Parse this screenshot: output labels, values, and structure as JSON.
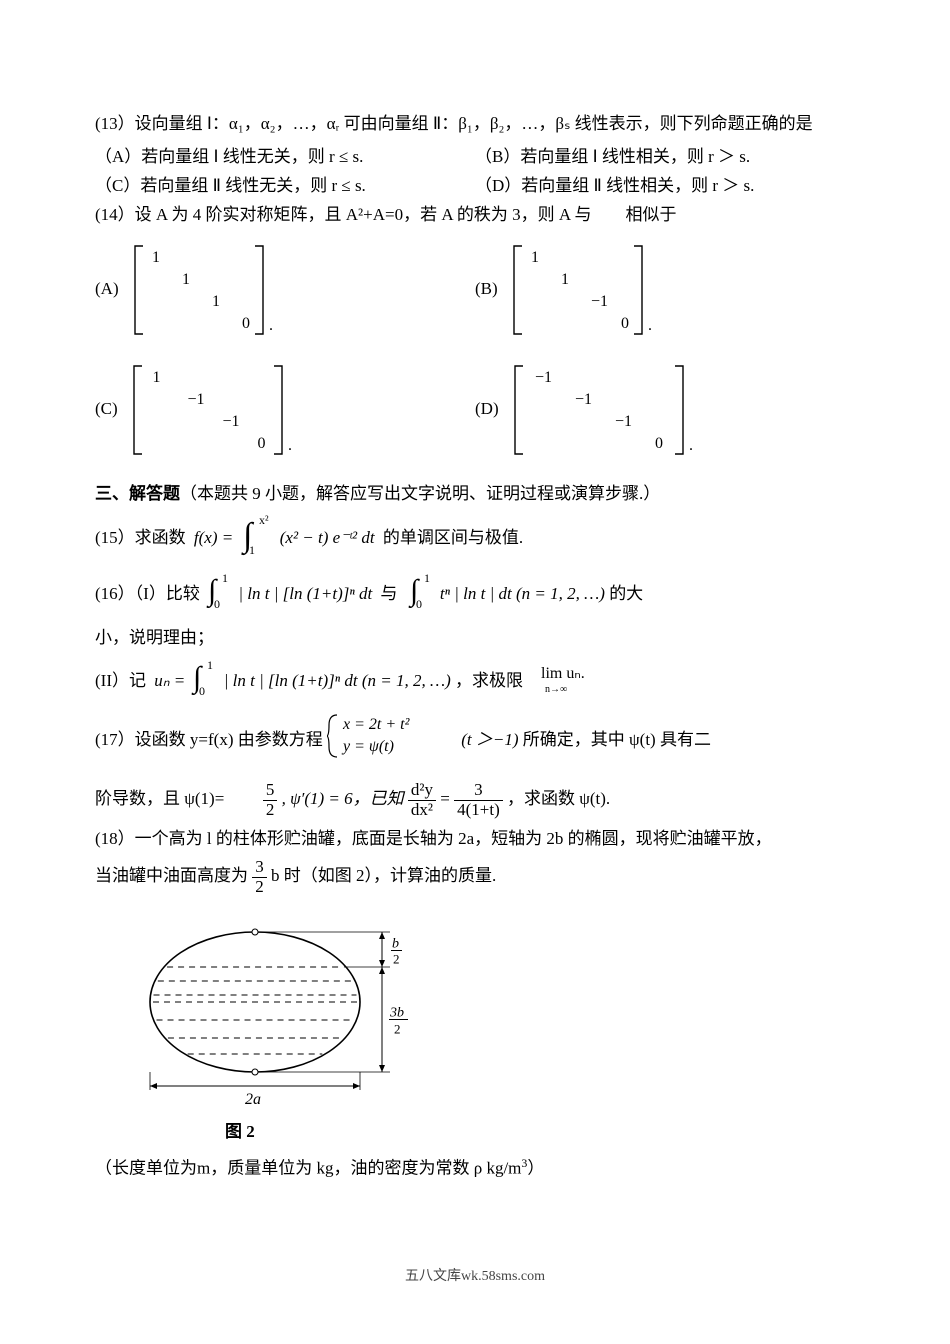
{
  "q13": {
    "stem": "(13）设向量组 Ⅰ：α₁，α₂，…，αᵣ 可由向量组 Ⅱ：β₁，β₂，…，βₛ 线性表示，则下列命题正确的是",
    "optA": "（A）若向量组 Ⅰ 线性无关，则 r ≤ s.",
    "optB": "（B）若向量组 Ⅰ 线性相关，则 r ＞ s.",
    "optC": "（C）若向量组 Ⅱ 线性无关，则 r ≤ s.",
    "optD": "（D）若向量组 Ⅱ 线性相关，则 r ＞ s."
  },
  "q14": {
    "stem": "(14）设 A 为 4 阶实对称矩阵，且 A²+A=0，若 A 的秩为 3，则 A 与　　相似于",
    "labelA": "(A)",
    "labelB": "(B)",
    "labelC": "(C)",
    "labelD": "(D)",
    "matrixA": {
      "d": [
        "1",
        "1",
        "1",
        "0"
      ]
    },
    "matrixB": {
      "d": [
        "1",
        "1",
        "−1",
        "0"
      ]
    },
    "matrixC": {
      "d": [
        "1",
        "−1",
        "−1",
        "0"
      ]
    },
    "matrixD": {
      "d": [
        "−1",
        "−1",
        "−1",
        "0"
      ]
    }
  },
  "section3": {
    "title": "三、解答题",
    "note": "（本题共 9 小题，解答应写出文字说明、证明过程或演算步骤.）"
  },
  "q15": {
    "prefix": "(15）求函数",
    "detail": "的单调区间与极值.",
    "int_lower": "1",
    "int_upper": "x²",
    "integrand": "(x² − t) e⁻ᵗ² dt",
    "f_label": "f(x) ="
  },
  "q16": {
    "part1_a": "(16）（I）比较",
    "expr1_low": "0",
    "expr1_up": "1",
    "expr1_txt": "| ln t | [ln (1+t)]ⁿ dt",
    "mid": "与",
    "expr2_low": "0",
    "expr2_up": "1",
    "expr2_txt": "tⁿ | ln t | dt (n = 1, 2, …)",
    "part1_b": "的大",
    "part1_c": "小，说明理由；",
    "part2_a": "(II）记",
    "u_eq": "uₙ =",
    "part2_int_low": "0",
    "part2_int_up": "1",
    "part2_int_txt": "| ln t | [ln (1+t)]ⁿ dt (n = 1, 2, …)",
    "part2_b": "，求极限",
    "lim_txt": "lim uₙ.",
    "lim_sub": "n→∞"
  },
  "q17": {
    "line1_a": "(17）设函数 y=f(x) 由参数方程",
    "brace_top": "x = 2t + t²",
    "brace_bot": "y = ψ(t)",
    "cond": "(t ＞−1)",
    "line1_b": "所确定，其中 ψ(t) 具有二",
    "line2_a": "阶导数，且 ψ(1)=",
    "val1_num": "5",
    "val1_den": "2",
    "mid1": ", ψ′(1) = 6，已知",
    "deriv_num": "d²y",
    "deriv_den": "dx²",
    "eq": " = ",
    "rhs_num": "3",
    "rhs_den": "4(1+t)",
    "line2_b": "，求函数 ψ(t)."
  },
  "q18": {
    "line1": "(18）一个高为 l 的柱体形贮油罐，底面是长轴为 2a，短轴为 2b 的椭圆，现将贮油罐平放，",
    "line2_a": "当油罐中油面高度为",
    "frac_num": "3",
    "frac_den": "2",
    "line2_b": " b 时（如图 2），计算油的质量.",
    "caption": "图 2",
    "unit_line_a": "（长度单位为m，质量单位为 kg，油的密度为常数 ρ kg/m",
    "unit_sup": "3",
    "unit_line_b": "）"
  },
  "figure": {
    "label_b2": "b/2",
    "label_3b2_num": "3b",
    "label_3b2_den": "2",
    "label_2a": "2a",
    "stroke": "#000000",
    "dash": "6,5"
  },
  "footer": "五八文库wk.58sms.com"
}
